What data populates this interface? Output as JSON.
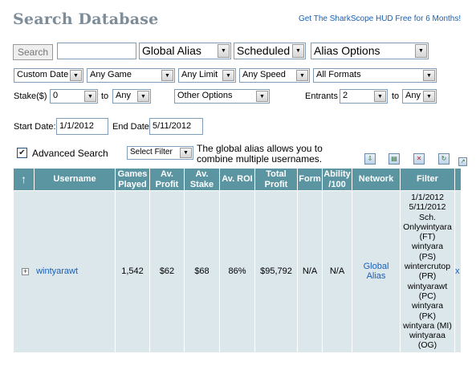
{
  "header": {
    "title": "Search Database",
    "promo_link": "Get The SharkScope HUD Free for 6 Months!"
  },
  "search": {
    "button_label": "Search",
    "input_value": "",
    "alias_select": "Global Alias",
    "schedule_select": "Scheduled",
    "alias_options_select": "Alias Options"
  },
  "filters": {
    "date_select": "Custom Date",
    "game_select": "Any Game",
    "limit_select": "Any Limit",
    "speed_select": "Any Speed",
    "format_select": "All Formats",
    "stake_label": "Stake($)",
    "stake_from": "0",
    "stake_to_label": "to",
    "stake_to": "Any",
    "other_options_select": "Other Options",
    "entrants_label": "Entrants",
    "entrants_from": "2",
    "entrants_to_label": "to",
    "entrants_to": "Any",
    "start_date_label": "Start Date:",
    "start_date_value": "1/1/2012",
    "end_date_label": "End Date:",
    "end_date_value": "5/11/2012"
  },
  "advanced": {
    "checkbox_label": "Advanced Search",
    "checked": true,
    "select_filter": "Select Filter",
    "hint_line1": "The global alias allows you to",
    "hint_line2": "combine multiple usernames."
  },
  "table": {
    "headers": {
      "sort": "↑",
      "username": "Username",
      "games_played": "Games Played",
      "av_profit": "Av. Profit",
      "av_stake": "Av. Stake",
      "av_roi": "Av. ROI",
      "total_profit": "Total Profit",
      "form": "Form",
      "ability": "Ability /100",
      "network": "Network",
      "filter": "Filter"
    },
    "row": {
      "expander": "+",
      "username": "wintyarawt",
      "games_played": "1,542",
      "av_profit": "$62",
      "av_stake": "$68",
      "av_roi": "86%",
      "total_profit": "$95,792",
      "form": "N/A",
      "ability": "N/A",
      "network": "Global Alias",
      "filter_lines": [
        "1/1/2012",
        "5/11/2012",
        "Sch.",
        "Onlywintyara",
        "(FT)",
        "wintyara",
        "(PS)",
        "wintercrutop",
        "(PR)",
        "wintyarawt",
        "(PC)",
        "wintyara",
        "(PK)",
        "wintyara (MI)",
        "wintyaraa",
        "(OG)"
      ],
      "remove": "x"
    }
  },
  "colors": {
    "header_bg": "#5b95a1",
    "row_bg": "#dce7ec",
    "link": "#1a5fb4",
    "title": "#7c8c98"
  },
  "icons": [
    "export-icon",
    "print-icon",
    "delete-icon",
    "refresh-icon",
    "popout-icon"
  ]
}
